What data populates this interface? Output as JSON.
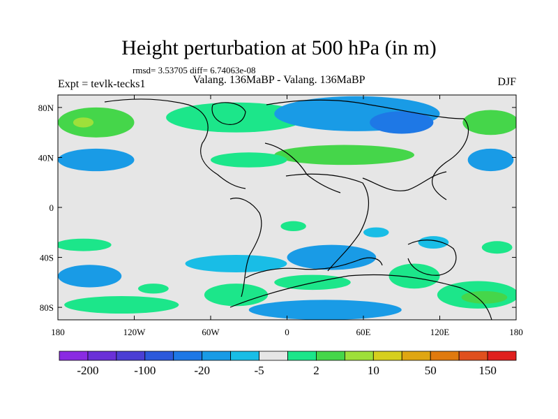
{
  "chart_data": {
    "type": "heatmap",
    "title": "Height perturbation at 500 hPa (in m)",
    "subtitle_stats": "rmsd= 3.53705 diff= 6.74063e-08",
    "left_label": "Expt = tevlk-tecks1",
    "center_label": "Valang. 136MaBP - Valang. 136MaBP",
    "right_label": "DJF",
    "x_range": [
      -180,
      180
    ],
    "y_range": [
      -90,
      90
    ],
    "x_ticks": [
      {
        "value": -180,
        "label": "180"
      },
      {
        "value": -120,
        "label": "120W"
      },
      {
        "value": -60,
        "label": "60W"
      },
      {
        "value": 0,
        "label": "0"
      },
      {
        "value": 60,
        "label": "60E"
      },
      {
        "value": 120,
        "label": "120E"
      },
      {
        "value": 180,
        "label": "180"
      }
    ],
    "y_ticks": [
      {
        "value": 80,
        "label": "80N"
      },
      {
        "value": 40,
        "label": "40N"
      },
      {
        "value": 0,
        "label": "0"
      },
      {
        "value": -40,
        "label": "40S"
      },
      {
        "value": -80,
        "label": "80S"
      }
    ],
    "colorbar": {
      "colors": [
        "#8a2be2",
        "#6a30d8",
        "#4b3fd4",
        "#2c59db",
        "#1e78e6",
        "#199be6",
        "#19bde6",
        "#e6e6e6",
        "#1ce68a",
        "#45d64a",
        "#9ee03a",
        "#d6cf1e",
        "#dfa612",
        "#e07a0e",
        "#e0501e",
        "#e0201e"
      ],
      "tick_labels": [
        "-200",
        "-100",
        "-20",
        "-5",
        "2",
        "10",
        "50",
        "150"
      ]
    },
    "regions": [
      {
        "lon": -150,
        "lat": 68,
        "rlon": 30,
        "rlat": 12,
        "level": 2
      },
      {
        "lon": -160,
        "lat": 68,
        "rlon": 8,
        "rlat": 4,
        "level": 3
      },
      {
        "lon": -40,
        "lat": 72,
        "rlon": 55,
        "rlat": 12,
        "level": 1
      },
      {
        "lon": -150,
        "lat": 38,
        "rlon": 30,
        "rlat": 9,
        "level": -2
      },
      {
        "lon": 55,
        "lat": 75,
        "rlon": 65,
        "rlat": 14,
        "level": -2
      },
      {
        "lon": 90,
        "lat": 68,
        "rlon": 25,
        "rlat": 9,
        "level": -3
      },
      {
        "lon": 45,
        "lat": 42,
        "rlon": 55,
        "rlat": 8,
        "level": 2
      },
      {
        "lon": -30,
        "lat": 38,
        "rlon": 30,
        "rlat": 6,
        "level": 1
      },
      {
        "lon": 160,
        "lat": 68,
        "rlon": 22,
        "rlat": 10,
        "level": 2
      },
      {
        "lon": 160,
        "lat": 38,
        "rlon": 18,
        "rlat": 9,
        "level": -2
      },
      {
        "lon": -160,
        "lat": -30,
        "rlon": 22,
        "rlat": 5,
        "level": 1
      },
      {
        "lon": -155,
        "lat": -55,
        "rlon": 25,
        "rlat": 9,
        "level": -2
      },
      {
        "lon": -130,
        "lat": -78,
        "rlon": 45,
        "rlat": 7,
        "level": 1
      },
      {
        "lon": -105,
        "lat": -65,
        "rlon": 12,
        "rlat": 4,
        "level": 1
      },
      {
        "lon": -40,
        "lat": -45,
        "rlon": 40,
        "rlat": 7,
        "level": -1
      },
      {
        "lon": -40,
        "lat": -70,
        "rlon": 25,
        "rlat": 9,
        "level": 1
      },
      {
        "lon": 35,
        "lat": -40,
        "rlon": 35,
        "rlat": 10,
        "level": -2
      },
      {
        "lon": 5,
        "lat": -15,
        "rlon": 10,
        "rlat": 4,
        "level": 1
      },
      {
        "lon": 70,
        "lat": -20,
        "rlon": 10,
        "rlat": 4,
        "level": -1
      },
      {
        "lon": 20,
        "lat": -60,
        "rlon": 30,
        "rlat": 6,
        "level": 1
      },
      {
        "lon": 30,
        "lat": -82,
        "rlon": 60,
        "rlat": 8,
        "level": -2
      },
      {
        "lon": 100,
        "lat": -55,
        "rlon": 20,
        "rlat": 10,
        "level": 1
      },
      {
        "lon": 115,
        "lat": -28,
        "rlon": 12,
        "rlat": 5,
        "level": -1
      },
      {
        "lon": 165,
        "lat": -32,
        "rlon": 12,
        "rlat": 5,
        "level": 1
      },
      {
        "lon": 150,
        "lat": -70,
        "rlon": 32,
        "rlat": 11,
        "level": 1
      },
      {
        "lon": 155,
        "lat": -72,
        "rlon": 18,
        "rlat": 5,
        "level": 2
      }
    ]
  }
}
